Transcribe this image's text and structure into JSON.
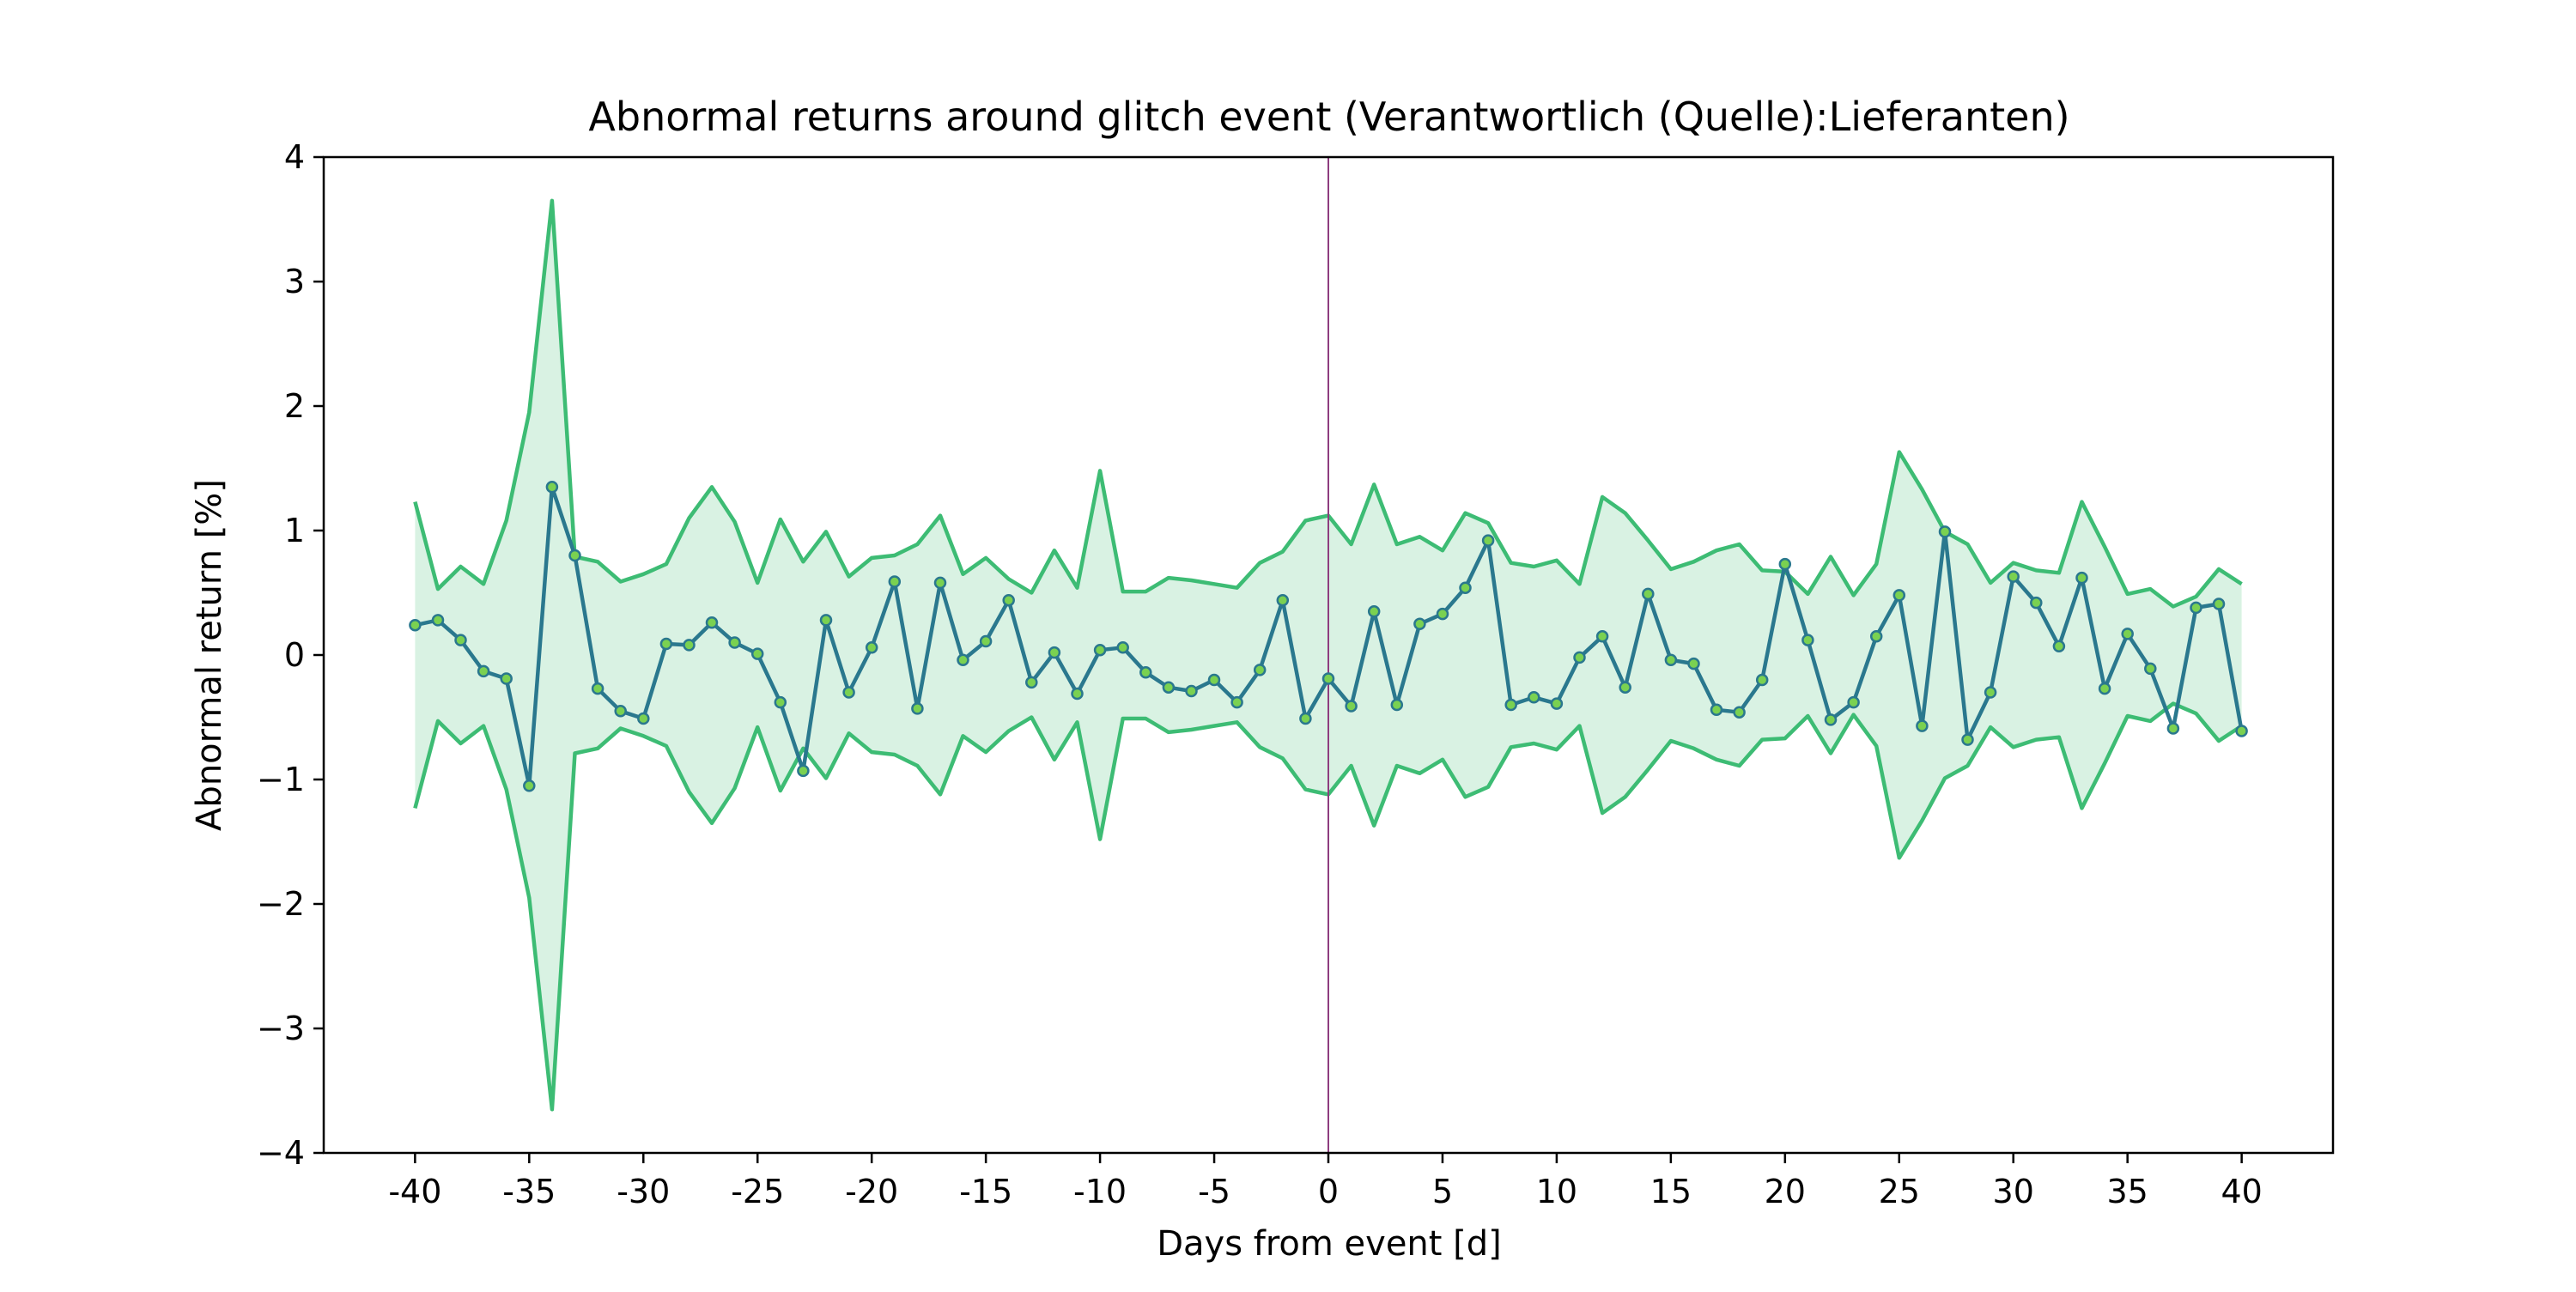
{
  "chart_data": {
    "type": "line",
    "title": "Abnormal returns around glitch event (Verantwortlich (Quelle):Lieferanten)",
    "xlabel": "Days from event [d]",
    "ylabel": "Abnormal return [%]",
    "xlim": [
      -44,
      44
    ],
    "ylim": [
      -4,
      4
    ],
    "x_ticks": [
      -40,
      -35,
      -30,
      -25,
      -20,
      -15,
      -10,
      -5,
      0,
      5,
      10,
      15,
      20,
      25,
      30,
      35,
      40
    ],
    "x_tick_labels": [
      "-40",
      "-35",
      "-30",
      "-25",
      "-20",
      "-15",
      "-10",
      "-5",
      "0",
      "5",
      "10",
      "15",
      "20",
      "25",
      "30",
      "35",
      "40"
    ],
    "y_ticks": [
      -4,
      -3,
      -2,
      -1,
      0,
      1,
      2,
      3,
      4
    ],
    "y_tick_labels": [
      "−4",
      "−3",
      "−2",
      "−1",
      "0",
      "1",
      "2",
      "3",
      "4"
    ],
    "event_line_x": 0,
    "grid": false,
    "colors": {
      "mean_line": "#2a788e",
      "marker_fill": "#7ad151",
      "band_line": "#3dbc74",
      "band_fill": "#d9f2e3",
      "event_line": "#8e3d7f"
    },
    "x": [
      -40,
      -39,
      -38,
      -37,
      -36,
      -35,
      -34,
      -33,
      -32,
      -31,
      -30,
      -29,
      -28,
      -27,
      -26,
      -25,
      -24,
      -23,
      -22,
      -21,
      -20,
      -19,
      -18,
      -17,
      -16,
      -15,
      -14,
      -13,
      -12,
      -11,
      -10,
      -9,
      -8,
      -7,
      -6,
      -5,
      -4,
      -3,
      -2,
      -1,
      0,
      1,
      2,
      3,
      4,
      5,
      6,
      7,
      8,
      9,
      10,
      11,
      12,
      13,
      14,
      15,
      16,
      17,
      18,
      19,
      20,
      21,
      22,
      23,
      24,
      25,
      26,
      27,
      28,
      29,
      30,
      31,
      32,
      33,
      34,
      35,
      36,
      37,
      38,
      39,
      40
    ],
    "series": [
      {
        "role": "mean",
        "values": [
          0.24,
          0.28,
          0.12,
          -0.13,
          -0.19,
          -1.05,
          1.35,
          0.8,
          -0.27,
          -0.45,
          -0.51,
          0.09,
          0.08,
          0.26,
          0.1,
          0.01,
          -0.38,
          -0.93,
          0.28,
          -0.3,
          0.06,
          0.59,
          -0.43,
          0.58,
          -0.04,
          0.11,
          0.44,
          -0.22,
          0.02,
          -0.31,
          0.04,
          0.06,
          -0.14,
          -0.26,
          -0.29,
          -0.2,
          -0.38,
          -0.12,
          0.44,
          -0.51,
          -0.19,
          -0.41,
          0.35,
          -0.4,
          0.25,
          0.33,
          0.54,
          0.92,
          -0.4,
          -0.34,
          -0.39,
          -0.02,
          0.15,
          -0.26,
          0.49,
          -0.04,
          -0.07,
          -0.44,
          -0.46,
          -0.2,
          0.73,
          0.12,
          -0.52,
          -0.38,
          0.15,
          0.48,
          -0.57,
          0.99,
          -0.68,
          -0.3,
          0.63,
          0.42,
          0.07,
          0.62,
          -0.27,
          0.17,
          -0.11,
          -0.59,
          0.38,
          0.41,
          -0.61
        ]
      },
      {
        "role": "upper",
        "values": [
          1.23,
          0.53,
          0.71,
          0.57,
          1.08,
          1.95,
          3.65,
          0.79,
          0.75,
          0.59,
          0.65,
          0.73,
          1.1,
          1.35,
          1.07,
          0.58,
          1.09,
          0.75,
          0.99,
          0.63,
          0.78,
          0.8,
          0.89,
          1.12,
          0.65,
          0.78,
          0.61,
          0.5,
          0.84,
          0.54,
          1.48,
          0.51,
          0.51,
          0.62,
          0.6,
          0.57,
          0.54,
          0.74,
          0.83,
          1.08,
          1.12,
          0.89,
          1.37,
          0.89,
          0.95,
          0.84,
          1.14,
          1.06,
          0.74,
          0.71,
          0.76,
          0.57,
          1.27,
          1.14,
          0.92,
          0.69,
          0.75,
          0.84,
          0.89,
          0.68,
          0.67,
          0.49,
          0.79,
          0.48,
          0.73,
          1.63,
          1.33,
          0.99,
          0.89,
          0.58,
          0.74,
          0.68,
          0.66,
          1.23,
          0.87,
          0.49,
          0.53,
          0.39,
          0.47,
          0.69,
          0.57
        ]
      },
      {
        "role": "lower",
        "values": [
          -1.23,
          -0.53,
          -0.71,
          -0.57,
          -1.08,
          -1.95,
          -3.65,
          -0.79,
          -0.75,
          -0.59,
          -0.65,
          -0.73,
          -1.1,
          -1.35,
          -1.07,
          -0.58,
          -1.09,
          -0.75,
          -0.99,
          -0.63,
          -0.78,
          -0.8,
          -0.89,
          -1.12,
          -0.65,
          -0.78,
          -0.61,
          -0.5,
          -0.84,
          -0.54,
          -1.48,
          -0.51,
          -0.51,
          -0.62,
          -0.6,
          -0.57,
          -0.54,
          -0.74,
          -0.83,
          -1.08,
          -1.12,
          -0.89,
          -1.37,
          -0.89,
          -0.95,
          -0.84,
          -1.14,
          -1.06,
          -0.74,
          -0.71,
          -0.76,
          -0.57,
          -1.27,
          -1.14,
          -0.92,
          -0.69,
          -0.75,
          -0.84,
          -0.89,
          -0.68,
          -0.67,
          -0.49,
          -0.79,
          -0.48,
          -0.73,
          -1.63,
          -1.33,
          -0.99,
          -0.89,
          -0.58,
          -0.74,
          -0.68,
          -0.66,
          -1.23,
          -0.87,
          -0.49,
          -0.53,
          -0.39,
          -0.47,
          -0.69,
          -0.57
        ]
      }
    ]
  }
}
